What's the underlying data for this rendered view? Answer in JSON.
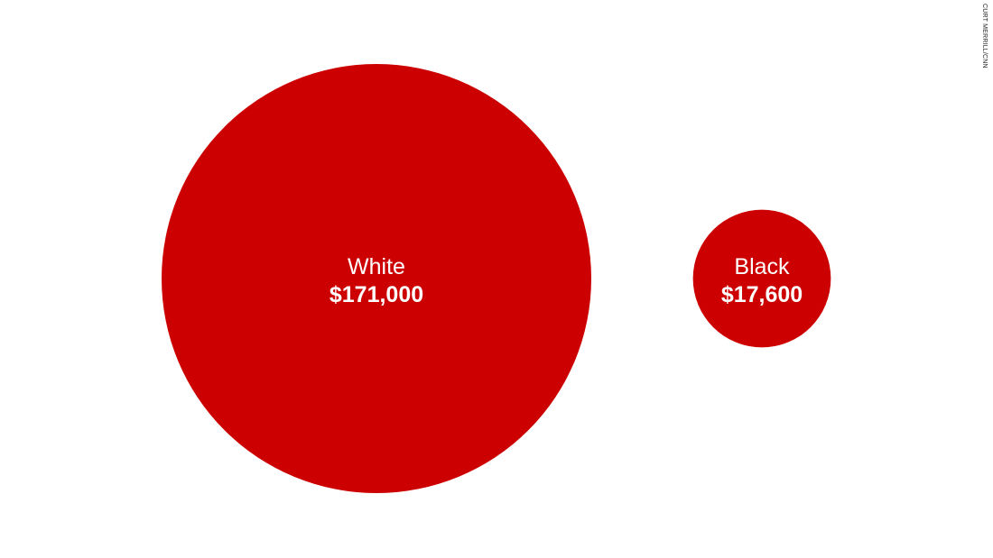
{
  "credit": "CURT MERRILL/CNN",
  "colors": {
    "bubble": "#cc0000",
    "label": "#ffffff"
  },
  "chart_data": {
    "type": "bubble",
    "encoding": "circle area proportional to value",
    "series": [
      {
        "label": "White",
        "value": 171000,
        "value_label": "$171,000"
      },
      {
        "label": "Black",
        "value": 17600,
        "value_label": "$17,600"
      }
    ]
  }
}
